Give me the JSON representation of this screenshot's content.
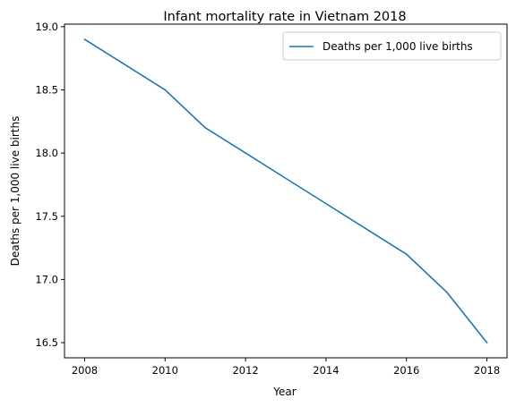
{
  "chart_data": {
    "type": "line",
    "title": "Infant mortality rate in Vietnam 2018",
    "xlabel": "Year",
    "ylabel": "Deaths per 1,000 live births",
    "x": [
      2008,
      2009,
      2010,
      2011,
      2012,
      2013,
      2014,
      2015,
      2016,
      2017,
      2018
    ],
    "series": [
      {
        "name": "Deaths per 1,000 live births",
        "color": "#1f77b4",
        "values": [
          18.9,
          18.7,
          18.5,
          18.2,
          18.0,
          17.8,
          17.6,
          17.4,
          17.2,
          16.9,
          16.5
        ]
      }
    ],
    "xlim": [
      2007.5,
      2018.5
    ],
    "ylim": [
      16.38,
      19.02
    ],
    "xticks": [
      "2008",
      "2010",
      "2012",
      "2014",
      "2016",
      "2018"
    ],
    "yticks": [
      "16.5",
      "17.0",
      "17.5",
      "18.0",
      "18.5",
      "19.0"
    ],
    "grid": false,
    "legend_position": "top-right"
  }
}
